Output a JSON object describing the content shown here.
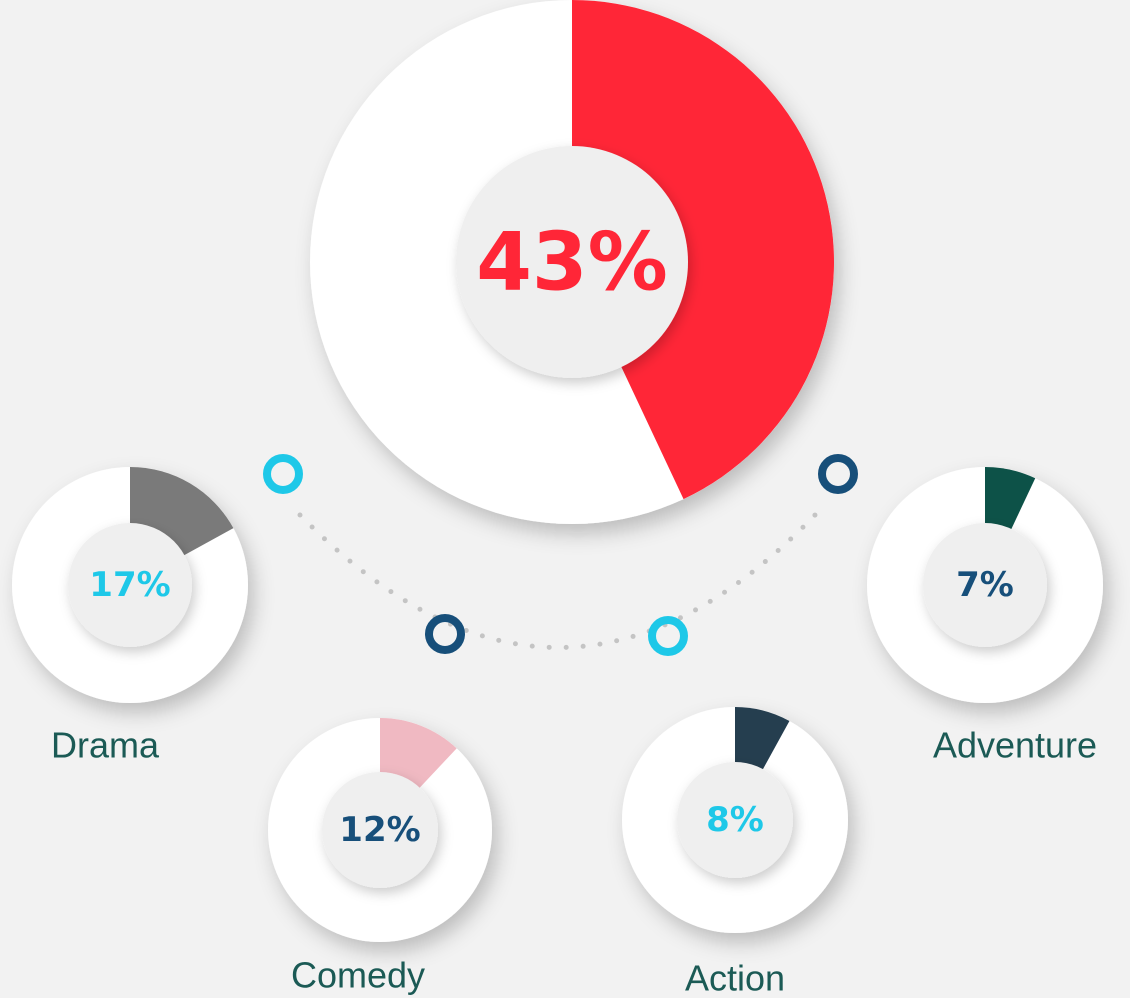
{
  "chart_data": [
    {
      "type": "donut",
      "values": [
        43
      ],
      "value_labels": [
        "43%"
      ],
      "color": "#ff2637",
      "text_color": "#ff2637"
    },
    {
      "type": "donut",
      "categories": [
        "Drama"
      ],
      "values": [
        17
      ],
      "value_labels": [
        "17%"
      ],
      "color": "#7a7a7a",
      "text_color": "#1ec8e8"
    },
    {
      "type": "donut",
      "categories": [
        "Comedy"
      ],
      "values": [
        12
      ],
      "value_labels": [
        "12%"
      ],
      "color": "#f0b9c2",
      "text_color": "#174f7a"
    },
    {
      "type": "donut",
      "categories": [
        "Action"
      ],
      "values": [
        8
      ],
      "value_labels": [
        "8%"
      ],
      "color": "#253e4f",
      "text_color": "#1ec8e8"
    },
    {
      "type": "donut",
      "categories": [
        "Adventure"
      ],
      "values": [
        7
      ],
      "value_labels": [
        "7%"
      ],
      "color": "#0d5248",
      "text_color": "#174f7a"
    }
  ]
}
